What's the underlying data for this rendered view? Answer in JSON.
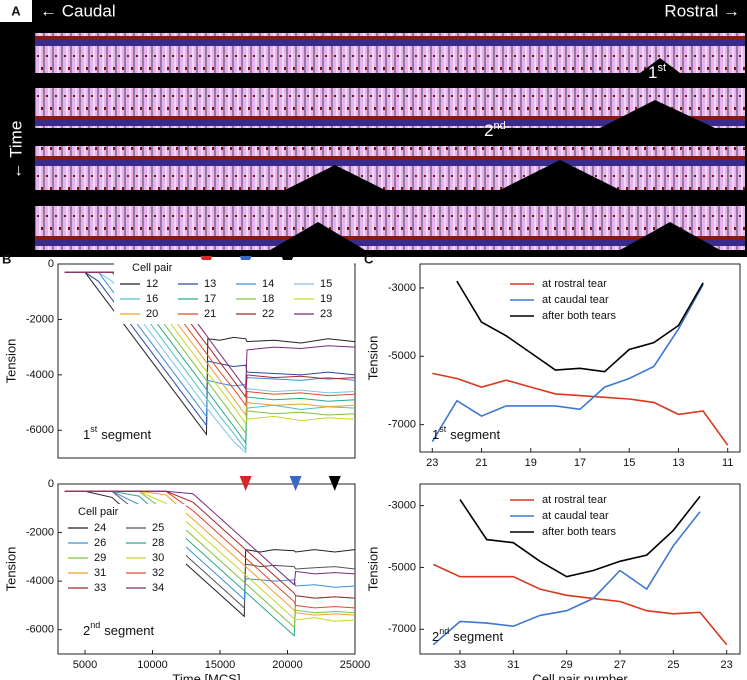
{
  "panel_a": {
    "label": "A",
    "left": "← Caudal",
    "right": "Rostral →",
    "time": "← Time",
    "tear_1": {
      "number": "1",
      "sup": "st"
    },
    "tear_2": {
      "number": "2",
      "sup": "nd"
    }
  },
  "chart_data": [
    {
      "type": "line",
      "panel_label": "B",
      "ylabel": "Tension",
      "segment_label": {
        "number": "1",
        "sup": "st",
        "text": "segment"
      },
      "legend_title": "Cell pair",
      "legend_columns": 4,
      "xlim": [
        3000,
        25000
      ],
      "ylim": [
        -7000,
        0
      ],
      "yticks": [
        0,
        -2000,
        -4000,
        -6000
      ],
      "markers": [
        {
          "x": 14000,
          "color": "#d62728"
        },
        {
          "x": 16900,
          "color": "#3a66c4"
        },
        {
          "x": 20000,
          "color": "#000000"
        }
      ],
      "x": [
        3500,
        5000,
        6000,
        7000,
        8000,
        9000,
        10000,
        11000,
        12000,
        13000,
        14000,
        14100,
        15000,
        16000,
        16900,
        17000,
        19000,
        21000,
        23000,
        25000
      ],
      "series": [
        {
          "name": "12",
          "color": "#222222",
          "values": [
            -300,
            -300,
            -950,
            -1600,
            -2250,
            -2900,
            -3550,
            -4200,
            -4850,
            -5500,
            -6150,
            -2700,
            -2750,
            -2650,
            -2700,
            -2800,
            -2750,
            -2850,
            -2700,
            -2800
          ]
        },
        {
          "name": "13",
          "color": "#2b4aa0",
          "values": [
            -300,
            -300,
            -625,
            -1275,
            -1925,
            -2575,
            -3225,
            -3875,
            -4525,
            -5175,
            -5825,
            -3500,
            -3600,
            -3700,
            -3650,
            -3900,
            -3950,
            -4000,
            -3900,
            -4000
          ]
        },
        {
          "name": "14",
          "color": "#3a8fd9",
          "values": [
            -300,
            -300,
            -300,
            -950,
            -1600,
            -2250,
            -2900,
            -3550,
            -4200,
            -4850,
            -5500,
            -4200,
            -4300,
            -4400,
            -4350,
            -4100,
            -4150,
            -4200,
            -4100,
            -4200
          ]
        },
        {
          "name": "15",
          "color": "#7ec3ee",
          "values": [
            -300,
            -300,
            -300,
            -625,
            -1275,
            -1925,
            -2575,
            -3225,
            -3875,
            -4525,
            -5175,
            -5250,
            -5800,
            -6400,
            -6800,
            -4500,
            -4600,
            -4550,
            -4650,
            -4600
          ]
        },
        {
          "name": "16",
          "color": "#4fc1c9",
          "values": [
            -300,
            -300,
            -300,
            -300,
            -950,
            -1600,
            -2250,
            -2900,
            -3550,
            -4200,
            -4850,
            -4900,
            -5500,
            -6100,
            -6700,
            -5200,
            -5100,
            -5250,
            -5150,
            -5200
          ]
        },
        {
          "name": "17",
          "color": "#2aa88a",
          "values": [
            -300,
            -300,
            -300,
            -300,
            -625,
            -1275,
            -1925,
            -2575,
            -3225,
            -3875,
            -4525,
            -4600,
            -5200,
            -5850,
            -6450,
            -4800,
            -4900,
            -4850,
            -4950,
            -4900
          ]
        },
        {
          "name": "18",
          "color": "#7dc242",
          "values": [
            -300,
            -300,
            -300,
            -300,
            -300,
            -950,
            -1600,
            -2250,
            -2900,
            -3550,
            -4200,
            -4250,
            -4850,
            -5500,
            -6100,
            -5300,
            -5400,
            -5350,
            -5450,
            -5400
          ]
        },
        {
          "name": "19",
          "color": "#c8d62b",
          "values": [
            -300,
            -300,
            -300,
            -300,
            -300,
            -625,
            -1275,
            -1925,
            -2575,
            -3225,
            -3875,
            -3950,
            -4500,
            -5150,
            -5750,
            -5600,
            -5500,
            -5650,
            -5550,
            -5600
          ]
        },
        {
          "name": "20",
          "color": "#f0a030",
          "values": [
            -300,
            -300,
            -300,
            -300,
            -300,
            -300,
            -950,
            -1600,
            -2250,
            -2900,
            -3550,
            -3600,
            -4200,
            -4850,
            -5450,
            -5000,
            -5100,
            -5050,
            -5150,
            -5100
          ]
        },
        {
          "name": "21",
          "color": "#e04b2a",
          "values": [
            -300,
            -300,
            -300,
            -300,
            -300,
            -300,
            -625,
            -1275,
            -1925,
            -2575,
            -3225,
            -3300,
            -3900,
            -4500,
            -5100,
            -4600,
            -4700,
            -4650,
            -4750,
            -4700
          ]
        },
        {
          "name": "22",
          "color": "#a8282a",
          "values": [
            -300,
            -300,
            -300,
            -300,
            -300,
            -300,
            -300,
            -950,
            -1600,
            -2250,
            -2900,
            -2950,
            -3550,
            -4200,
            -4800,
            -4000,
            -4100,
            -4050,
            -4150,
            -4100
          ]
        },
        {
          "name": "23",
          "color": "#7a2a7a",
          "values": [
            -300,
            -300,
            -300,
            -300,
            -300,
            -300,
            -300,
            -625,
            -1275,
            -1925,
            -2575,
            -2650,
            -3250,
            -3900,
            -4500,
            -3100,
            -3000,
            -3050,
            -2950,
            -3000
          ]
        }
      ]
    },
    {
      "type": "line",
      "ylabel": "Tension",
      "xlabel": "Time [MCS]",
      "segment_label": {
        "number": "2",
        "sup": "nd",
        "text": "segment"
      },
      "legend_title": "Cell pair",
      "legend_columns": 2,
      "xlim": [
        3000,
        25000
      ],
      "ylim": [
        -7000,
        0
      ],
      "yticks": [
        0,
        -2000,
        -4000,
        -6000
      ],
      "xticks": [
        5000,
        10000,
        15000,
        20000,
        25000
      ],
      "markers": [
        {
          "x": 16900,
          "color": "#d62728"
        },
        {
          "x": 20600,
          "color": "#3a66c4"
        },
        {
          "x": 23500,
          "color": "#000000"
        }
      ],
      "x": [
        3500,
        5000,
        7000,
        9000,
        11000,
        13000,
        15000,
        16800,
        16900,
        18000,
        19000,
        20500,
        20600,
        22000,
        23500,
        25000
      ],
      "series": [
        {
          "name": "24",
          "color": "#222222",
          "values": [
            -300,
            -300,
            -550,
            -1550,
            -2550,
            -3550,
            -4550,
            -5450,
            -2700,
            -2800,
            -2700,
            -2750,
            -2800,
            -2700,
            -2800,
            -2700
          ]
        },
        {
          "name": "25",
          "color": "#555555",
          "values": [
            -300,
            -300,
            -300,
            -1200,
            -2200,
            -3200,
            -4200,
            -5100,
            -3300,
            -3400,
            -3350,
            -3400,
            -3500,
            -3450,
            -3400,
            -3500
          ]
        },
        {
          "name": "26",
          "color": "#3a8fd9",
          "values": [
            -300,
            -300,
            -300,
            -850,
            -1850,
            -2850,
            -3850,
            -4750,
            -3900,
            -3950,
            -4000,
            -3950,
            -4200,
            -4150,
            -4250,
            -4200
          ]
        },
        {
          "name": "28",
          "color": "#2aa88a",
          "values": [
            -300,
            -300,
            -300,
            -500,
            -1500,
            -2500,
            -3500,
            -4400,
            -4450,
            -5000,
            -5500,
            -6250,
            -4600,
            -4700,
            -4650,
            -4700
          ]
        },
        {
          "name": "29",
          "color": "#7dc242",
          "values": [
            -300,
            -300,
            -300,
            -300,
            -1150,
            -2150,
            -3150,
            -4050,
            -4100,
            -4650,
            -5150,
            -5900,
            -5200,
            -5300,
            -5250,
            -5300
          ]
        },
        {
          "name": "30",
          "color": "#c8d62b",
          "values": [
            -300,
            -300,
            -300,
            -300,
            -800,
            -1800,
            -2800,
            -3700,
            -3750,
            -4300,
            -4800,
            -5550,
            -5600,
            -5500,
            -5650,
            -5600
          ]
        },
        {
          "name": "31",
          "color": "#f0a030",
          "values": [
            -300,
            -300,
            -300,
            -300,
            -450,
            -1450,
            -2450,
            -3350,
            -3400,
            -3950,
            -4450,
            -5200,
            -5300,
            -5400,
            -5350,
            -5400
          ]
        },
        {
          "name": "32",
          "color": "#e04b2a",
          "values": [
            -300,
            -300,
            -300,
            -300,
            -300,
            -1100,
            -2100,
            -3000,
            -3050,
            -3600,
            -4100,
            -4850,
            -5000,
            -5100,
            -5050,
            -5100
          ]
        },
        {
          "name": "33",
          "color": "#a8282a",
          "values": [
            -300,
            -300,
            -300,
            -300,
            -300,
            -750,
            -1750,
            -2650,
            -2700,
            -3250,
            -3750,
            -4500,
            -4600,
            -4700,
            -4650,
            -4700
          ]
        },
        {
          "name": "34",
          "color": "#7a2a7a",
          "values": [
            -300,
            -300,
            -300,
            -300,
            -300,
            -400,
            -1400,
            -2300,
            -2350,
            -2900,
            -3400,
            -4150,
            -3600,
            -3700,
            -3650,
            -3700
          ]
        }
      ]
    },
    {
      "type": "line",
      "panel_label": "C",
      "ylabel": "Tension",
      "segment_label": {
        "number": "1",
        "sup": "st",
        "text": "segment"
      },
      "xlim": [
        23.5,
        10.5
      ],
      "xticks": [
        23,
        21,
        19,
        17,
        15,
        13,
        11
      ],
      "ylim": [
        -7800,
        -2300
      ],
      "yticks": [
        -3000,
        -5000,
        -7000
      ],
      "x": [
        23,
        22,
        21,
        20,
        19,
        18,
        17,
        16,
        15,
        14,
        13,
        12,
        11
      ],
      "series": [
        {
          "name": "at rostral tear",
          "color": "#d9381e",
          "values": [
            -5500,
            -5650,
            -5900,
            -5700,
            -5900,
            -6100,
            -6150,
            -6200,
            -6250,
            -6350,
            -6700,
            -6600,
            -7600
          ]
        },
        {
          "name": "at caudal tear",
          "color": "#3f78d0",
          "values": [
            -7500,
            -6300,
            -6750,
            -6450,
            -6450,
            -6450,
            -6550,
            -5900,
            -5650,
            -5300,
            -4200,
            -2900,
            null
          ]
        },
        {
          "name": "after both tears",
          "color": "#000000",
          "values": [
            null,
            -2800,
            -4000,
            -4400,
            -4900,
            -5400,
            -5350,
            -5450,
            -4800,
            -4600,
            -4100,
            -2850,
            null
          ]
        }
      ]
    },
    {
      "type": "line",
      "ylabel": "Tension",
      "xlabel": "Cell pair number",
      "segment_label": {
        "number": "2",
        "sup": "nd",
        "text": "segment"
      },
      "xlim": [
        34.5,
        22.5
      ],
      "xticks": [
        33,
        31,
        29,
        27,
        25,
        23
      ],
      "ylim": [
        -7800,
        -2300
      ],
      "yticks": [
        -3000,
        -5000,
        -7000
      ],
      "x": [
        34,
        33,
        32,
        31,
        30,
        29,
        28,
        27,
        26,
        25,
        24,
        23
      ],
      "series": [
        {
          "name": "at rostral tear",
          "color": "#d9381e",
          "values": [
            -4900,
            -5300,
            -5300,
            -5300,
            -5700,
            -5900,
            -6000,
            -6100,
            -6400,
            -6500,
            -6450,
            -7500
          ]
        },
        {
          "name": "at caudal tear",
          "color": "#3f78d0",
          "values": [
            -7500,
            -6750,
            -6800,
            -6900,
            -6550,
            -6400,
            -6000,
            -5100,
            -5700,
            -4300,
            -3200,
            null
          ]
        },
        {
          "name": "after both tears",
          "color": "#000000",
          "values": [
            null,
            -2800,
            -4100,
            -4200,
            -4800,
            -5300,
            -5100,
            -4800,
            -4600,
            -3800,
            -2700,
            null
          ]
        }
      ]
    }
  ]
}
